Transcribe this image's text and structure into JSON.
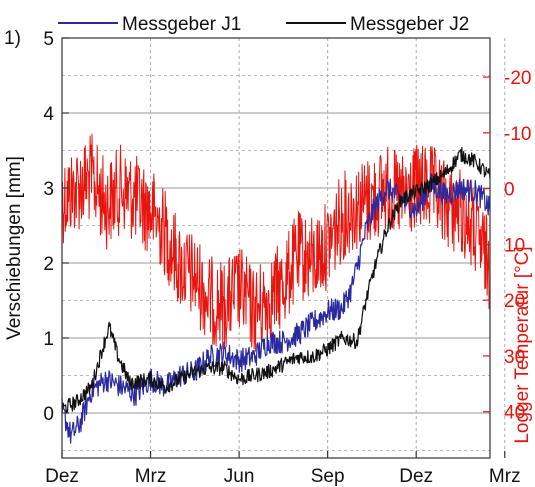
{
  "chart_data": {
    "type": "line",
    "panel_label": "1)",
    "title": "",
    "xlabel": "",
    "ylabel": "Verschiebungen [mm]",
    "y2label": "Logger Temperatur [°C]",
    "x_ticks": [
      "Dez",
      "Mrz",
      "Jun",
      "Sep",
      "Dez",
      "Mrz"
    ],
    "x_range": [
      0,
      14.5
    ],
    "ylim": [
      -0.6,
      5
    ],
    "y_ticks": [
      "0",
      "1",
      "2",
      "3",
      "4",
      "5"
    ],
    "y2lim": [
      48.3,
      -27
    ],
    "y2_ticks": [
      "-20",
      "-10",
      "0",
      "10",
      "20",
      "30",
      "40"
    ],
    "legend_position": "top",
    "colors": {
      "J1": "#2a2aa0",
      "J2": "#111111",
      "temperature": "#e8150f",
      "grid": "#999999"
    },
    "series": [
      {
        "name": "Messgeber J1",
        "axis": "left",
        "x": [
          0,
          0.3,
          0.6,
          1,
          1.5,
          2,
          2.5,
          3,
          3.5,
          4,
          4.5,
          5,
          5.5,
          6,
          6.5,
          7,
          7.5,
          8,
          8.5,
          9,
          9.5,
          9.8,
          10,
          10.3,
          10.6,
          11,
          11.5,
          12,
          12.5,
          13,
          13.5,
          14,
          14.3,
          14.5
        ],
        "y": [
          0.05,
          -0.3,
          -0.15,
          0.3,
          0.45,
          0.35,
          0.25,
          0.45,
          0.35,
          0.5,
          0.55,
          0.75,
          0.8,
          0.7,
          0.75,
          0.95,
          0.95,
          1.05,
          1.2,
          1.35,
          1.4,
          1.65,
          1.95,
          2.45,
          2.75,
          3.0,
          2.85,
          2.7,
          3.05,
          2.9,
          3.0,
          2.95,
          2.85,
          2.7
        ]
      },
      {
        "name": "Messgeber J2",
        "axis": "left",
        "x": [
          0,
          0.5,
          1,
          1.4,
          1.6,
          1.9,
          2.3,
          3,
          3.5,
          4,
          4.5,
          5,
          5.5,
          6,
          6.5,
          7,
          7.5,
          8,
          8.5,
          9,
          9.5,
          10,
          10.3,
          10.6,
          11,
          11.5,
          12,
          12.5,
          13,
          13.5,
          14,
          14.5
        ],
        "y": [
          0.05,
          0.15,
          0.35,
          0.9,
          1.15,
          0.75,
          0.4,
          0.45,
          0.35,
          0.45,
          0.55,
          0.6,
          0.6,
          0.45,
          0.5,
          0.55,
          0.65,
          0.75,
          0.75,
          0.85,
          1.0,
          0.95,
          1.5,
          1.95,
          2.45,
          2.85,
          2.95,
          3.05,
          3.2,
          3.45,
          3.35,
          3.15
        ]
      },
      {
        "name": "",
        "axis": "right",
        "x": [
          0,
          0.5,
          1,
          1.5,
          2,
          2.5,
          3,
          3.5,
          4,
          4.5,
          5,
          5.5,
          6,
          6.5,
          7,
          7.5,
          8,
          8.5,
          9,
          9.5,
          10,
          10.5,
          11,
          11.5,
          12,
          12.5,
          13,
          13.5,
          14,
          14.5
        ],
        "y": [
          2,
          0,
          -2,
          3,
          0,
          2,
          4,
          8,
          14,
          16,
          20,
          21,
          18,
          22,
          20,
          17,
          12,
          13,
          10,
          5,
          3,
          2,
          0,
          2,
          0,
          0,
          3,
          4,
          8,
          14
        ]
      }
    ]
  }
}
